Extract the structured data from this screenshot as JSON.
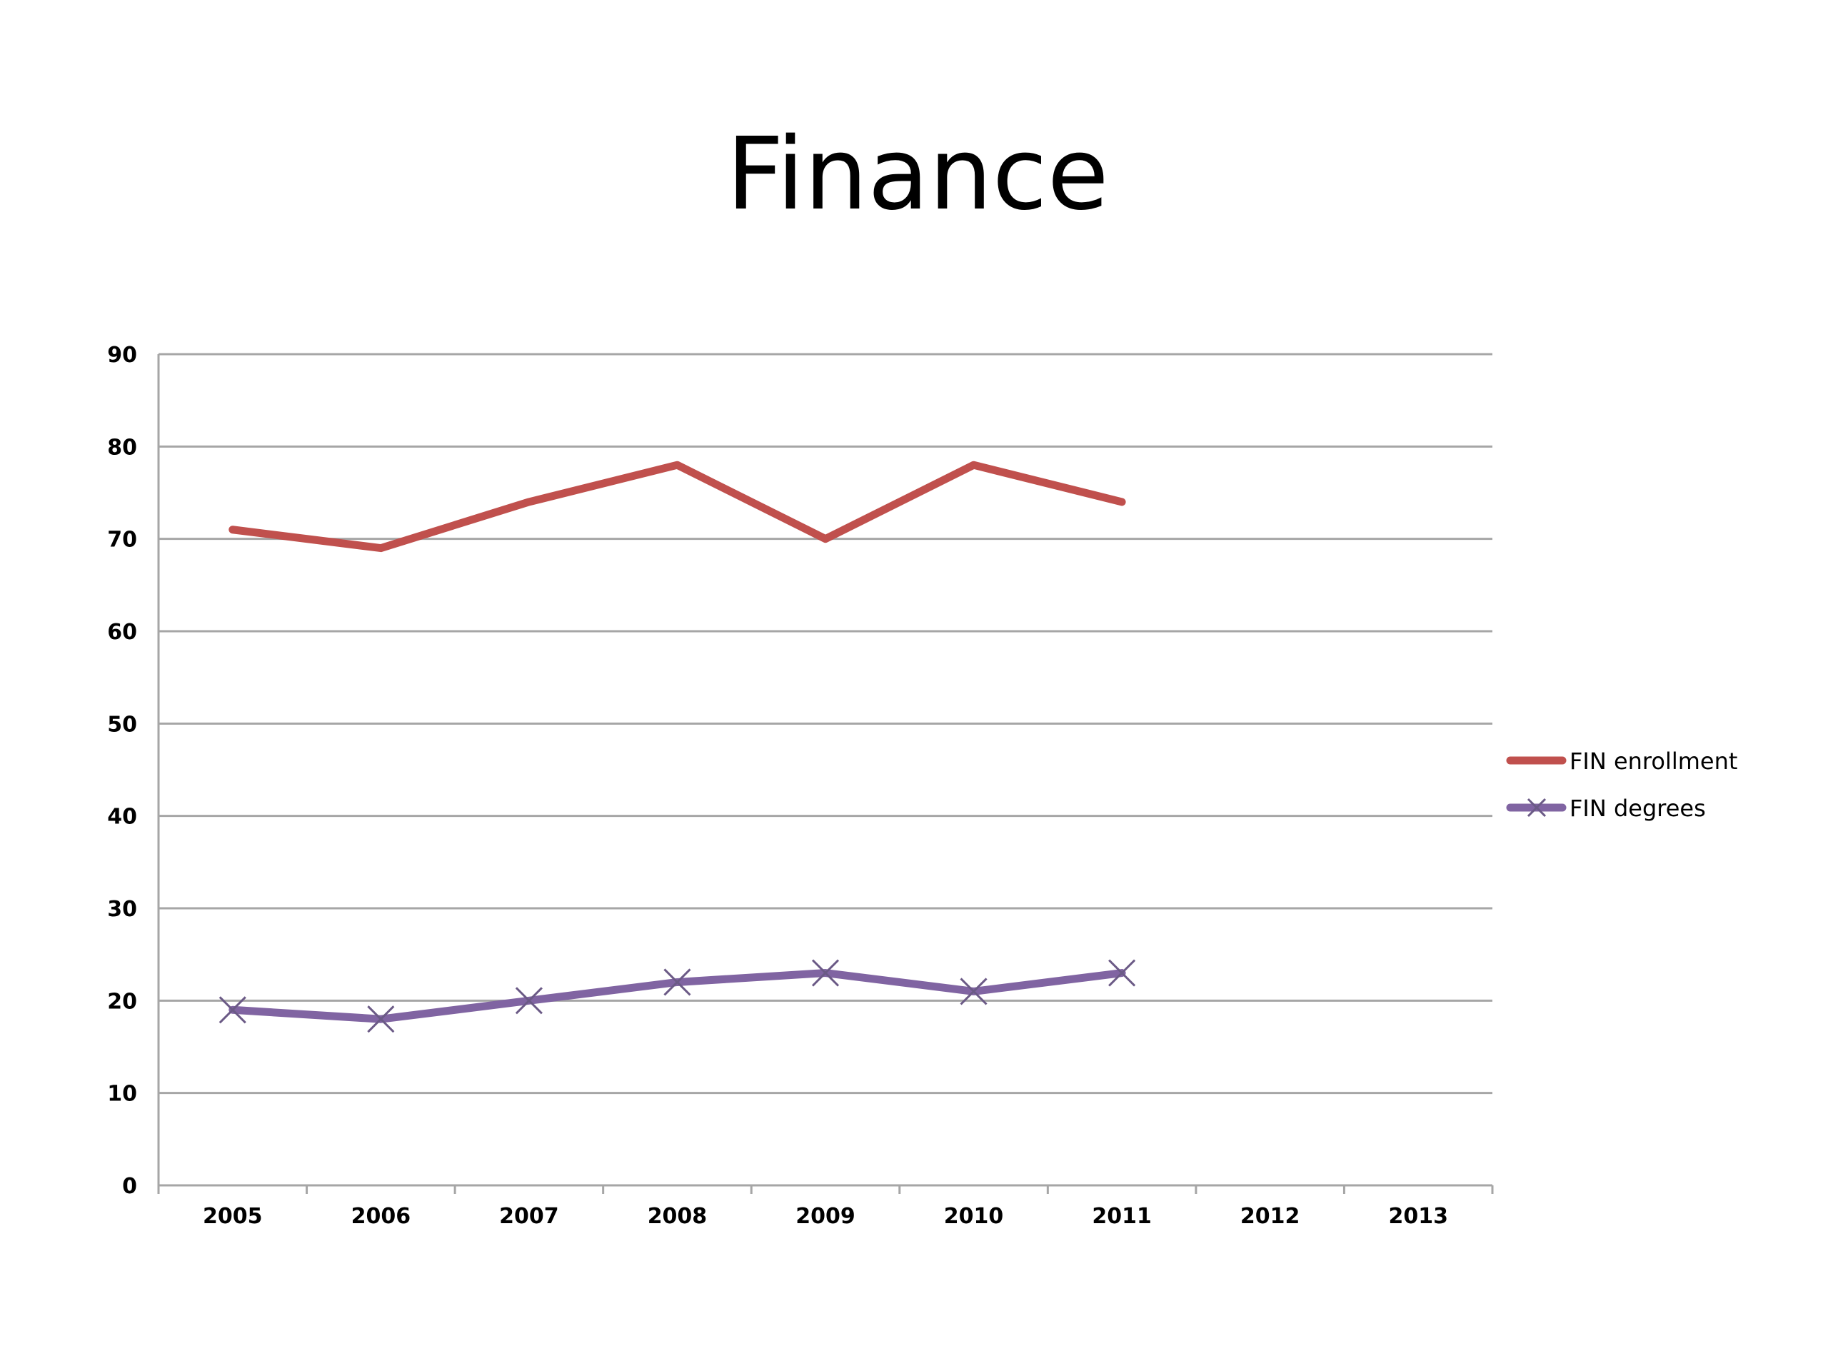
{
  "chart_data": {
    "type": "line",
    "title": "Finance",
    "xlabel": "",
    "ylabel": "",
    "categories": [
      "2005",
      "2006",
      "2007",
      "2008",
      "2009",
      "2010",
      "2011",
      "2012",
      "2013"
    ],
    "ylim": [
      0,
      90
    ],
    "yticks": [
      "0",
      "10",
      "20",
      "30",
      "40",
      "50",
      "60",
      "70",
      "80",
      "90"
    ],
    "grid": true,
    "legend_position": "right",
    "series": [
      {
        "name": "FIN enrollment",
        "values": [
          71,
          69,
          74,
          78,
          70,
          78,
          74,
          null,
          null
        ],
        "color": "#c0504d",
        "marker": "none"
      },
      {
        "name": "FIN degrees",
        "values": [
          19,
          18,
          20,
          22,
          23,
          21,
          23,
          null,
          null
        ],
        "color": "#8064a2",
        "marker": "x"
      }
    ]
  }
}
